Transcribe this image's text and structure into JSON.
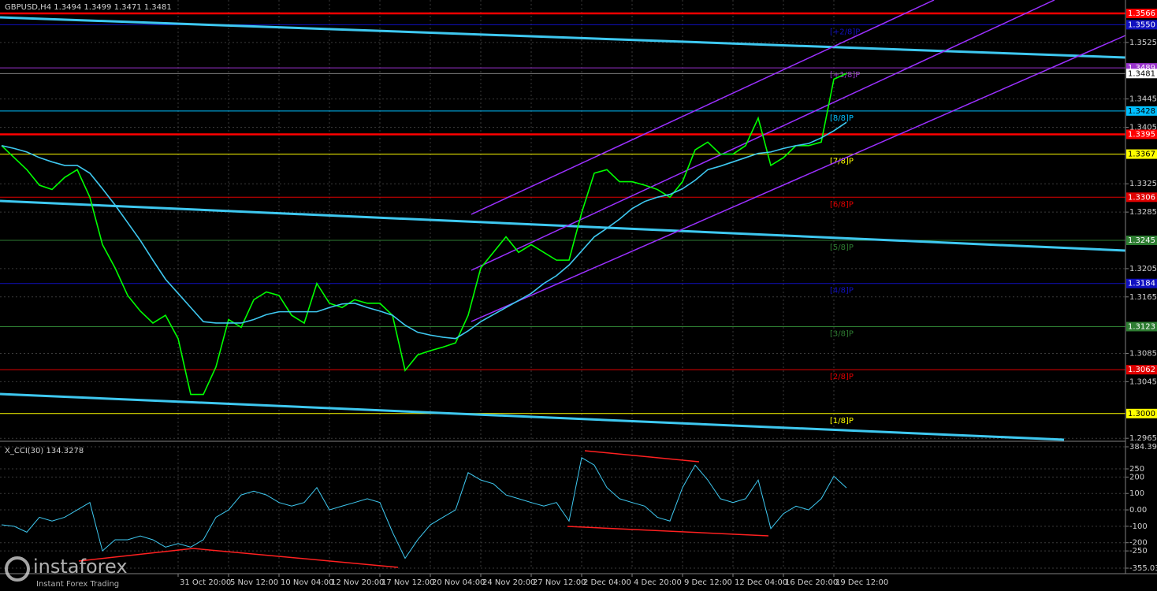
{
  "chart_data": [
    {
      "type": "line",
      "title": "GBPUSD,H4  1.3494 1.3499 1.3471 1.3481",
      "categories": [
        null,
        null,
        null,
        null,
        null,
        null,
        null,
        null,
        null,
        null,
        null,
        null,
        null,
        null,
        "31 Oct 20:00",
        null,
        null,
        null,
        "5 Nov 12:00",
        null,
        null,
        null,
        "10 Nov 04:00",
        null,
        null,
        null,
        "12 Nov 20:00",
        null,
        null,
        null,
        "17 Nov 12:00",
        null,
        null,
        null,
        "20 Nov 04:00",
        null,
        null,
        null,
        "24 Nov 20:00",
        null,
        null,
        null,
        "27 Nov 12:00",
        null,
        null,
        null,
        "2 Dec 04:00",
        null,
        null,
        null,
        "4 Dec 20:00",
        null,
        null,
        null,
        "9 Dec 12:00",
        null,
        null,
        null,
        "12 Dec 04:00",
        null,
        null,
        null,
        "16 Dec 20:00",
        null,
        null,
        null,
        "19 Dec 12:00",
        null
      ],
      "series": [
        {
          "color": "#00ff00",
          "values": [
            1.3379,
            1.3362,
            1.3345,
            1.3323,
            1.3317,
            1.3334,
            1.3345,
            1.3306,
            1.3239,
            1.3206,
            1.3167,
            1.3145,
            1.3128,
            1.3139,
            1.3106,
            1.3027,
            1.3027,
            1.3066,
            1.3133,
            1.3122,
            1.3161,
            1.3172,
            1.3167,
            1.3139,
            1.3128,
            1.3184,
            1.3156,
            1.315,
            1.3161,
            1.3156,
            1.3156,
            1.3139,
            1.3061,
            1.3083,
            1.3089,
            1.3094,
            1.31,
            1.3139,
            1.3206,
            1.3228,
            1.325,
            1.3228,
            1.3239,
            1.3228,
            1.3217,
            1.3217,
            1.3284,
            1.334,
            1.3345,
            1.3328,
            1.3328,
            1.3323,
            1.3317,
            1.3306,
            1.3328,
            1.3373,
            1.3384,
            1.3367,
            1.3367,
            1.3379,
            1.3418,
            1.3351,
            1.3362,
            1.3379,
            1.3379,
            1.3384,
            1.3473,
            1.3481
          ]
        },
        {
          "color": "#3ec8f0",
          "values": [
            1.3379,
            1.3375,
            1.337,
            1.3362,
            1.3356,
            1.3351,
            1.3351,
            1.334,
            1.3318,
            1.3295,
            1.327,
            1.3245,
            1.3217,
            1.319,
            1.317,
            1.315,
            1.313,
            1.3128,
            1.3128,
            1.3128,
            1.3133,
            1.314,
            1.3144,
            1.3144,
            1.3144,
            1.3144,
            1.315,
            1.3155,
            1.3156,
            1.315,
            1.3145,
            1.3139,
            1.3125,
            1.3115,
            1.3111,
            1.3108,
            1.3106,
            1.3117,
            1.313,
            1.314,
            1.315,
            1.316,
            1.317,
            1.3184,
            1.3195,
            1.321,
            1.323,
            1.325,
            1.3262,
            1.3275,
            1.329,
            1.33,
            1.3306,
            1.331,
            1.3318,
            1.333,
            1.3345,
            1.335,
            1.3356,
            1.3362,
            1.3368,
            1.337,
            1.3375,
            1.3379,
            1.3382,
            1.339,
            1.34,
            1.3412
          ]
        }
      ],
      "ylim": [
        1.2963,
        1.3585
      ],
      "yticks": [
        1.3525,
        1.3445,
        1.3405,
        1.3325,
        1.3285,
        1.3205,
        1.3165,
        1.3085,
        1.3045,
        1.2965
      ],
      "grid": true,
      "current_price": 1.3481,
      "levels": [
        {
          "value": 1.3566,
          "color": "#ff0000"
        },
        {
          "value": 1.355,
          "label": "1.3550",
          "tag": "[+2/8]P",
          "color": "#1010c0"
        },
        {
          "value": 1.3489,
          "tag": "[+1/8]P",
          "color": "#9932cc"
        },
        {
          "value": 1.3428,
          "tag": "[8/8]P",
          "color": "#00bfff"
        },
        {
          "value": 1.3395,
          "color": "#ff0000"
        },
        {
          "value": 1.3367,
          "tag": "[7/8]P",
          "color": "#ffff00"
        },
        {
          "value": 1.3306,
          "tag": "[6/8]P",
          "color": "#e00000"
        },
        {
          "value": 1.3245,
          "tag": "[5/8]P",
          "color": "#2e7d32"
        },
        {
          "value": 1.3184,
          "tag": "[4/8]P",
          "color": "#1010c0"
        },
        {
          "value": 1.3123,
          "tag": "[3/8]P",
          "color": "#2e7d32"
        },
        {
          "value": 1.3062,
          "tag": "[2/8]P",
          "color": "#e00000"
        },
        {
          "value": 1.3,
          "label": "1.3000",
          "tag": "[1/8]P",
          "color": "#ffff00"
        }
      ]
    },
    {
      "type": "line",
      "title": "X_CCI(30) 134.3278",
      "series": [
        {
          "color": "#3ec8f0",
          "values": [
            -91,
            -100,
            -136,
            -45,
            -68,
            -45,
            0,
            45,
            -250,
            -182,
            -182,
            -159,
            -182,
            -227,
            -205,
            -227,
            -182,
            -45,
            0,
            91,
            114,
            91,
            45,
            23,
            45,
            136,
            0,
            23,
            45,
            68,
            45,
            -136,
            -295,
            -182,
            -91,
            -45,
            0,
            227,
            182,
            159,
            91,
            68,
            45,
            23,
            45,
            -68,
            318,
            273,
            136,
            68,
            45,
            23,
            -45,
            -68,
            136,
            273,
            182,
            68,
            45,
            68,
            182,
            -114,
            -23,
            23,
            0,
            68,
            205,
            134.3278
          ]
        }
      ],
      "ylim": [
        -355.0311,
        384.3971
      ],
      "yticks": [
        {
          "value": 384.3971,
          "label": "384.3971"
        },
        250,
        200,
        100,
        {
          "value": 0,
          "label": "0.00"
        },
        -100,
        -200,
        -250,
        {
          "value": -355.0311,
          "label": "-355.0311"
        }
      ],
      "grid": true
    }
  ],
  "watermark": {
    "brand": "instaforex",
    "slogan": "Instant Forex Trading"
  }
}
